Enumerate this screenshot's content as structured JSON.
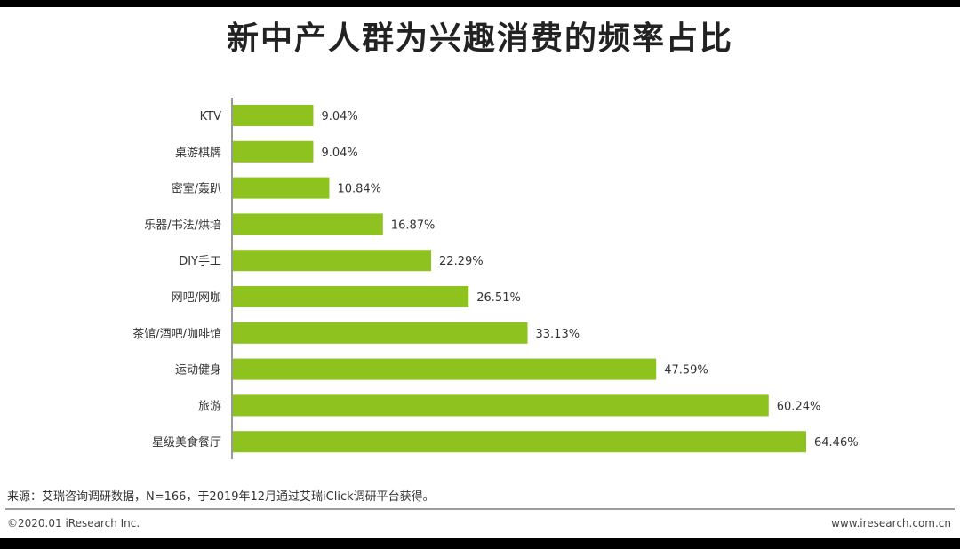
{
  "title": "新中产人群为兴趣消费的频率占比",
  "source": "来源：艾瑞咨询调研数据，N=166，于2019年12月通过艾瑞iClick调研平台获得。",
  "copyright": "©2020.01 iResearch Inc.",
  "website": "www.iresearch.com.cn",
  "colors": {
    "bar": "#8dc21f",
    "axis": "#333333",
    "text": "#333333"
  },
  "chart_data": {
    "type": "bar",
    "orientation": "horizontal",
    "categories": [
      "KTV",
      "桌游棋牌",
      "密室/轰趴",
      "乐器/书法/烘培",
      "DIY手工",
      "网吧/网咖",
      "茶馆/酒吧/咖啡馆",
      "运动健身",
      "旅游",
      "星级美食餐厅"
    ],
    "values": [
      9.04,
      9.04,
      10.84,
      16.87,
      22.29,
      26.51,
      33.13,
      47.59,
      60.24,
      64.46
    ],
    "labels": [
      "9.04%",
      "9.04%",
      "10.84%",
      "16.87%",
      "22.29%",
      "26.51%",
      "33.13%",
      "47.59%",
      "60.24%",
      "64.46%"
    ],
    "xlim": [
      0,
      80
    ],
    "grid": false,
    "legend": "none",
    "title": "新中产人群为兴趣消费的频率占比"
  }
}
